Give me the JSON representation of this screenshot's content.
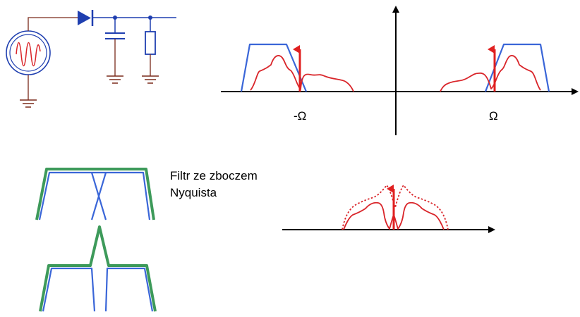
{
  "labels": {
    "neg_omega": "-Ω",
    "pos_omega": "Ω",
    "filter_line1": "Filtr ze zboczem",
    "filter_line2": "Nyquista"
  },
  "colors": {
    "filter_blue": "#3a66d8",
    "nyquist_green": "#3d9a5a",
    "spectrum_red": "#d9252a",
    "circuit_blue": "#1f3fb0",
    "circuit_dark": "#7a2a1a"
  },
  "icons": {
    "source": "ac-signal-source-icon",
    "diode": "diode-icon",
    "capacitor": "capacitor-icon",
    "resistor": "resistor-icon",
    "ground": "ground-icon"
  }
}
